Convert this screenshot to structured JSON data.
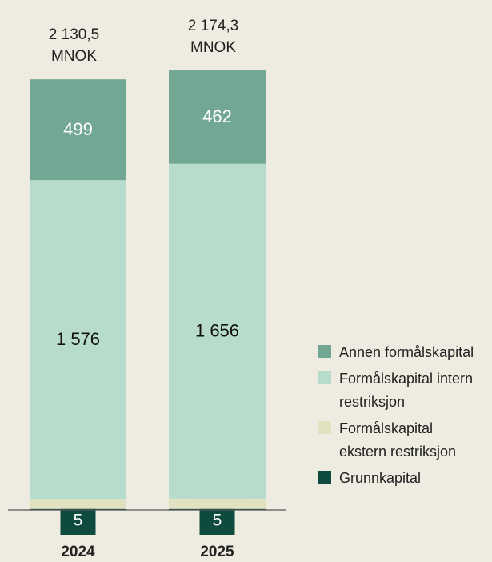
{
  "chart_data": {
    "type": "stacked_bar",
    "categories": [
      "2024",
      "2025"
    ],
    "totals": [
      2130.5,
      2174.3
    ],
    "total_labels": [
      "2 130,5",
      "2 174,3"
    ],
    "unit": "MNOK",
    "series": [
      {
        "name": "Annen formålskapital",
        "color": "#72a893",
        "values": [
          499,
          462
        ]
      },
      {
        "name": "Formålskapital intern restriksjon",
        "color": "#b7dccb",
        "values": [
          1576,
          1656
        ],
        "value_labels": [
          "1 576",
          "1 656"
        ]
      },
      {
        "name": "Formålskapital ekstern restriksjon",
        "color": "#e0e2c2",
        "values": [
          50,
          51
        ]
      },
      {
        "name": "Grunnkapital",
        "color": "#0e4a3d",
        "values": [
          5,
          5
        ]
      }
    ]
  }
}
